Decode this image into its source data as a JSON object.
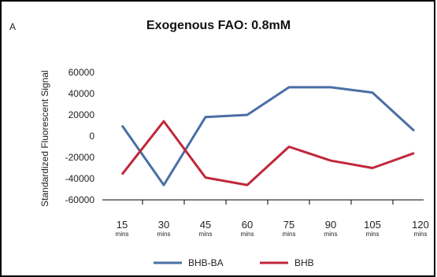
{
  "panel_label": "A",
  "chart_data": {
    "type": "line",
    "title": "Exogenous FAO: 0.8mM",
    "xlabel": "",
    "ylabel": "Standardized Fluorescent Signal",
    "categories": [
      "15",
      "30",
      "45",
      "60",
      "75",
      "90",
      "105",
      "120"
    ],
    "category_unit": "mins",
    "y_ticks": [
      60000,
      40000,
      20000,
      0,
      -20000,
      -40000,
      -60000
    ],
    "ylim": [
      -60000,
      60000
    ],
    "grid": false,
    "legend_position": "bottom",
    "series": [
      {
        "name": "BHB-BA",
        "color": "#4a6fa5",
        "values": [
          10000,
          -46000,
          18000,
          20000,
          46000,
          46000,
          41000,
          5000
        ]
      },
      {
        "name": "BHB",
        "color": "#c0283a",
        "values": [
          -36000,
          14000,
          -39000,
          -46000,
          -10000,
          -23000,
          -30000,
          -16000
        ]
      }
    ]
  }
}
